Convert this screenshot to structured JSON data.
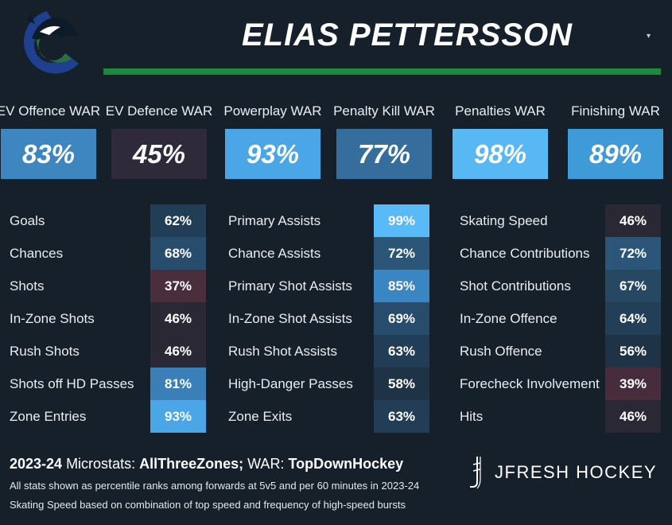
{
  "header": {
    "player_name": "ELIAS PETTERSSON",
    "dropdown_glyph": "▾",
    "logo_icon": "canucks-orca-logo",
    "accent_green": "#1b8a3c"
  },
  "war": [
    {
      "label": "EV Offence WAR",
      "value": "83%",
      "color": "#3e86c0"
    },
    {
      "label": "EV Defence WAR",
      "value": "45%",
      "color": "#2e2a3a"
    },
    {
      "label": "Powerplay WAR",
      "value": "93%",
      "color": "#4aa6e6"
    },
    {
      "label": "Penalty Kill WAR",
      "value": "77%",
      "color": "#356e9c"
    },
    {
      "label": "Penalties WAR",
      "value": "98%",
      "color": "#57b8f4"
    },
    {
      "label": "Finishing WAR",
      "value": "89%",
      "color": "#3f9ad8"
    }
  ],
  "stats": {
    "col1": [
      {
        "label": "Goals",
        "value": "62%",
        "color": "#223e56"
      },
      {
        "label": "Chances",
        "value": "68%",
        "color": "#284c6c"
      },
      {
        "label": "Shots",
        "value": "37%",
        "color": "#4a2e3c"
      },
      {
        "label": "In-Zone Shots",
        "value": "46%",
        "color": "#2a2834"
      },
      {
        "label": "Rush Shots",
        "value": "46%",
        "color": "#2a2834"
      },
      {
        "label": "Shots off HD Passes",
        "value": "81%",
        "color": "#3a7fb8"
      },
      {
        "label": "Zone Entries",
        "value": "93%",
        "color": "#4aa6e6"
      }
    ],
    "col2": [
      {
        "label": "Primary Assists",
        "value": "99%",
        "color": "#58baf6"
      },
      {
        "label": "Chance Assists",
        "value": "72%",
        "color": "#2b5677"
      },
      {
        "label": "Primary Shot Assists",
        "value": "85%",
        "color": "#3a86c2"
      },
      {
        "label": "In-Zone Shot Assists",
        "value": "69%",
        "color": "#284c6c"
      },
      {
        "label": "Rush Shot Assists",
        "value": "63%",
        "color": "#223e56"
      },
      {
        "label": "High-Danger Passes",
        "value": "58%",
        "color": "#1f3347"
      },
      {
        "label": "Zone Exits",
        "value": "63%",
        "color": "#223e56"
      }
    ],
    "col3": [
      {
        "label": "Skating Speed",
        "value": "46%",
        "color": "#2a2834"
      },
      {
        "label": "Chance Contributions",
        "value": "72%",
        "color": "#2b5677"
      },
      {
        "label": "Shot Contributions",
        "value": "67%",
        "color": "#264863"
      },
      {
        "label": "In-Zone Offence",
        "value": "64%",
        "color": "#233f58"
      },
      {
        "label": "Rush Offence",
        "value": "56%",
        "color": "#1f3347"
      },
      {
        "label": "Forecheck Involvement",
        "value": "39%",
        "color": "#472d3b"
      },
      {
        "label": "Hits",
        "value": "46%",
        "color": "#2a2834"
      }
    ]
  },
  "footer": {
    "season": "2023-24",
    "micro_label": " Microstats: ",
    "micro_source": "AllThreeZones;",
    "war_label": " WAR: ",
    "war_source": "TopDownHockey",
    "note1": "All stats shown as percentile ranks among forwards at 5v5 and per 60 minutes in 2023-24",
    "note2": "Skating Speed based on combination of top speed and frequency of high-speed bursts",
    "brand": "JFRESH HOCKEY",
    "brand_icon": "jfresh-stick-icon"
  }
}
